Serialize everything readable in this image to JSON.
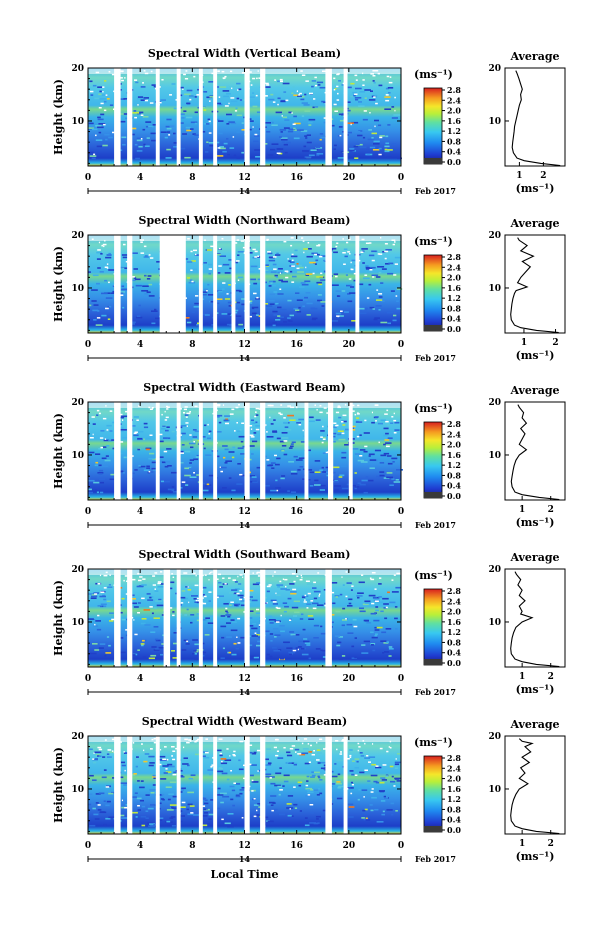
{
  "figure": {
    "date_label": "Feb 2017",
    "day_label": "14",
    "xlabel": "Local Time",
    "ylabel": "Height (km)",
    "unit_label": "(ms⁻¹)",
    "avg_title": "Average",
    "avg_xlabel": "(ms⁻¹)"
  },
  "chart_data": [
    {
      "type": "heatmap",
      "title": "Spectral Width (Vertical Beam)",
      "xlim": [
        0,
        24
      ],
      "xticks": [
        "0",
        "4",
        "8",
        "12",
        "16",
        "20",
        "0"
      ],
      "ylim": [
        1.5,
        20
      ],
      "yticks": [
        10,
        20
      ],
      "colorbar": {
        "min": 0.0,
        "max": 2.8,
        "ticks": [
          "2.8",
          "2.4",
          "2.0",
          "1.6",
          "1.2",
          "0.8",
          "0.4",
          "0.0"
        ]
      },
      "data_gaps_hours": [
        [
          2.0,
          2.5
        ],
        [
          3.0,
          3.4
        ],
        [
          5.2,
          5.5
        ],
        [
          6.8,
          7.1
        ],
        [
          8.5,
          8.8
        ],
        [
          9.6,
          9.9
        ],
        [
          12.0,
          12.4
        ],
        [
          13.2,
          13.6
        ],
        [
          18.2,
          18.7
        ],
        [
          19.6,
          19.9
        ]
      ],
      "average_profile": {
        "xlim": [
          0.4,
          2.9
        ],
        "xticks": [
          1,
          2
        ],
        "points": [
          [
            2.7,
            1.6
          ],
          [
            1.9,
            2.0
          ],
          [
            1.2,
            2.5
          ],
          [
            0.9,
            3.0
          ],
          [
            0.75,
            4.0
          ],
          [
            0.7,
            5.0
          ],
          [
            0.72,
            6.0
          ],
          [
            0.75,
            7.0
          ],
          [
            0.78,
            8.0
          ],
          [
            0.8,
            9.0
          ],
          [
            0.85,
            10.0
          ],
          [
            0.9,
            11.0
          ],
          [
            0.95,
            12.0
          ],
          [
            1.0,
            13.0
          ],
          [
            1.08,
            14.0
          ],
          [
            1.05,
            15.0
          ],
          [
            1.12,
            16.0
          ],
          [
            1.05,
            17.0
          ],
          [
            0.98,
            18.0
          ],
          [
            0.9,
            19.0
          ],
          [
            0.85,
            19.5
          ]
        ]
      }
    },
    {
      "type": "heatmap",
      "title": "Spectral Width (Northward Beam)",
      "xlim": [
        0,
        24
      ],
      "xticks": [
        "0",
        "4",
        "8",
        "12",
        "16",
        "20",
        "0"
      ],
      "ylim": [
        1.5,
        20
      ],
      "yticks": [
        10,
        20
      ],
      "colorbar": {
        "min": 0.0,
        "max": 2.8,
        "ticks": [
          "2.8",
          "2.4",
          "2.0",
          "1.6",
          "1.2",
          "0.8",
          "0.4",
          "0.0"
        ]
      },
      "data_gaps_hours": [
        [
          2.0,
          2.5
        ],
        [
          3.0,
          3.4
        ],
        [
          5.5,
          7.5
        ],
        [
          8.5,
          8.8
        ],
        [
          9.6,
          9.9
        ],
        [
          11.0,
          11.3
        ],
        [
          12.0,
          12.4
        ],
        [
          13.2,
          13.6
        ],
        [
          18.2,
          18.7
        ],
        [
          20.5,
          20.8
        ]
      ],
      "average_profile": {
        "xlim": [
          0.4,
          2.3
        ],
        "xticks": [
          1,
          2
        ],
        "points": [
          [
            2.1,
            1.6
          ],
          [
            1.4,
            2.0
          ],
          [
            0.9,
            2.5
          ],
          [
            0.7,
            3.0
          ],
          [
            0.6,
            4.0
          ],
          [
            0.58,
            5.0
          ],
          [
            0.6,
            6.0
          ],
          [
            0.62,
            7.0
          ],
          [
            0.65,
            8.0
          ],
          [
            0.7,
            9.0
          ],
          [
            0.75,
            9.5
          ],
          [
            1.1,
            10.2
          ],
          [
            0.8,
            11.0
          ],
          [
            0.9,
            12.0
          ],
          [
            1.05,
            13.0
          ],
          [
            1.2,
            14.0
          ],
          [
            0.95,
            15.0
          ],
          [
            1.3,
            16.0
          ],
          [
            0.9,
            17.0
          ],
          [
            1.1,
            18.0
          ],
          [
            0.85,
            19.0
          ],
          [
            0.8,
            19.5
          ]
        ]
      }
    },
    {
      "type": "heatmap",
      "title": "Spectral Width (Eastward Beam)",
      "xlim": [
        0,
        24
      ],
      "xticks": [
        "0",
        "4",
        "8",
        "12",
        "16",
        "20",
        "0"
      ],
      "ylim": [
        1.5,
        20
      ],
      "yticks": [
        10,
        20
      ],
      "colorbar": {
        "min": 0.0,
        "max": 2.8,
        "ticks": [
          "2.8",
          "2.4",
          "2.0",
          "1.6",
          "1.2",
          "0.8",
          "0.4",
          "0.0"
        ]
      },
      "data_gaps_hours": [
        [
          2.0,
          2.5
        ],
        [
          3.0,
          3.4
        ],
        [
          5.2,
          5.5
        ],
        [
          6.8,
          7.1
        ],
        [
          8.5,
          8.8
        ],
        [
          9.6,
          9.9
        ],
        [
          12.0,
          12.4
        ],
        [
          13.2,
          13.6
        ],
        [
          16.6,
          16.9
        ],
        [
          18.4,
          18.8
        ],
        [
          20.0,
          20.3
        ]
      ],
      "average_profile": {
        "xlim": [
          0.4,
          2.5
        ],
        "xticks": [
          1,
          2
        ],
        "points": [
          [
            2.3,
            1.6
          ],
          [
            1.6,
            2.0
          ],
          [
            1.0,
            2.5
          ],
          [
            0.75,
            3.0
          ],
          [
            0.65,
            4.0
          ],
          [
            0.62,
            5.0
          ],
          [
            0.65,
            6.0
          ],
          [
            0.68,
            7.0
          ],
          [
            0.72,
            8.0
          ],
          [
            0.78,
            9.0
          ],
          [
            0.9,
            10.0
          ],
          [
            1.15,
            11.0
          ],
          [
            0.9,
            12.0
          ],
          [
            1.0,
            13.0
          ],
          [
            1.1,
            14.0
          ],
          [
            0.95,
            15.0
          ],
          [
            1.15,
            16.0
          ],
          [
            1.0,
            17.0
          ],
          [
            1.05,
            18.0
          ],
          [
            0.9,
            19.0
          ],
          [
            0.85,
            19.5
          ]
        ]
      }
    },
    {
      "type": "heatmap",
      "title": "Spectral Width (Southward Beam)",
      "xlim": [
        0,
        24
      ],
      "xticks": [
        "0",
        "4",
        "8",
        "12",
        "16",
        "20",
        "0"
      ],
      "ylim": [
        1.5,
        20
      ],
      "yticks": [
        10,
        20
      ],
      "colorbar": {
        "min": 0.0,
        "max": 2.8,
        "ticks": [
          "2.8",
          "2.4",
          "2.0",
          "1.6",
          "1.2",
          "0.8",
          "0.4",
          "0.0"
        ]
      },
      "data_gaps_hours": [
        [
          2.0,
          2.5
        ],
        [
          3.0,
          3.4
        ],
        [
          5.8,
          6.3
        ],
        [
          6.8,
          7.1
        ],
        [
          8.5,
          8.8
        ],
        [
          9.6,
          9.9
        ],
        [
          12.0,
          12.4
        ],
        [
          13.2,
          13.6
        ],
        [
          18.2,
          18.7
        ]
      ],
      "average_profile": {
        "xlim": [
          0.4,
          2.5
        ],
        "xticks": [
          1,
          2
        ],
        "points": [
          [
            2.3,
            1.6
          ],
          [
            1.5,
            2.0
          ],
          [
            1.0,
            2.5
          ],
          [
            0.75,
            3.0
          ],
          [
            0.62,
            4.0
          ],
          [
            0.6,
            5.0
          ],
          [
            0.62,
            6.0
          ],
          [
            0.65,
            7.0
          ],
          [
            0.7,
            8.0
          ],
          [
            0.78,
            9.0
          ],
          [
            1.0,
            10.0
          ],
          [
            1.35,
            10.8
          ],
          [
            0.95,
            11.5
          ],
          [
            1.0,
            12.0
          ],
          [
            0.9,
            13.0
          ],
          [
            1.1,
            14.0
          ],
          [
            0.9,
            15.0
          ],
          [
            1.0,
            16.0
          ],
          [
            0.85,
            17.0
          ],
          [
            0.95,
            18.0
          ],
          [
            0.8,
            19.0
          ],
          [
            0.75,
            19.5
          ]
        ]
      }
    },
    {
      "type": "heatmap",
      "title": "Spectral Width (Westward Beam)",
      "xlim": [
        0,
        24
      ],
      "xticks": [
        "0",
        "4",
        "8",
        "12",
        "16",
        "20",
        "0"
      ],
      "ylim": [
        1.5,
        20
      ],
      "yticks": [
        10,
        20
      ],
      "colorbar": {
        "min": 0.0,
        "max": 2.8,
        "ticks": [
          "2.8",
          "2.4",
          "2.0",
          "1.6",
          "1.2",
          "0.8",
          "0.4",
          "0.0"
        ]
      },
      "data_gaps_hours": [
        [
          2.0,
          2.5
        ],
        [
          3.0,
          3.4
        ],
        [
          5.2,
          5.5
        ],
        [
          6.8,
          7.1
        ],
        [
          8.5,
          8.8
        ],
        [
          9.6,
          9.9
        ],
        [
          12.0,
          12.4
        ],
        [
          13.2,
          13.6
        ],
        [
          18.2,
          18.7
        ],
        [
          19.6,
          19.9
        ]
      ],
      "average_profile": {
        "xlim": [
          0.4,
          2.5
        ],
        "xticks": [
          1,
          2
        ],
        "points": [
          [
            2.3,
            1.6
          ],
          [
            1.5,
            2.0
          ],
          [
            1.0,
            2.5
          ],
          [
            0.75,
            3.0
          ],
          [
            0.62,
            4.0
          ],
          [
            0.6,
            5.0
          ],
          [
            0.62,
            6.0
          ],
          [
            0.65,
            7.0
          ],
          [
            0.7,
            8.0
          ],
          [
            0.78,
            9.0
          ],
          [
            0.9,
            10.0
          ],
          [
            1.2,
            11.0
          ],
          [
            0.9,
            12.0
          ],
          [
            1.1,
            13.0
          ],
          [
            0.95,
            14.0
          ],
          [
            1.25,
            15.0
          ],
          [
            1.0,
            16.0
          ],
          [
            1.3,
            17.0
          ],
          [
            1.1,
            18.0
          ],
          [
            1.35,
            18.6
          ],
          [
            1.0,
            19.0
          ],
          [
            0.9,
            19.5
          ]
        ]
      }
    }
  ]
}
